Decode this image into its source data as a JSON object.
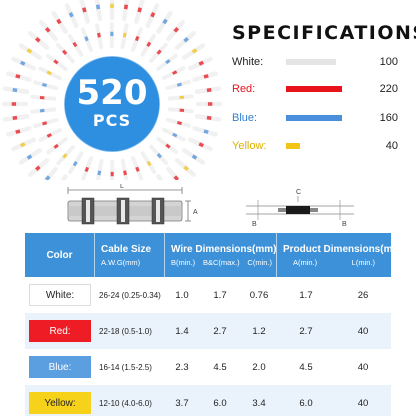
{
  "badge": {
    "number": "520",
    "unit": "PCS"
  },
  "specifications": {
    "title": "SPECIFICATIONS",
    "items": [
      {
        "label": "White:",
        "count": "100",
        "color": "#e4e4e4",
        "label_color": "#222222"
      },
      {
        "label": "Red:",
        "count": "220",
        "color": "#e8141c",
        "label_color": "#e8141c"
      },
      {
        "label": "Blue:",
        "count": "160",
        "color": "#4a8fdc",
        "label_color": "#2f7fd4"
      },
      {
        "label": "Yellow:",
        "count": "40",
        "color": "#f2c416",
        "label_color": "#e0b000"
      }
    ]
  },
  "diagram": {
    "label_l": "L",
    "label_a": "A",
    "label_b": "B",
    "label_c": "C"
  },
  "table": {
    "header": {
      "color": "Color",
      "cable_size": "Cable Size",
      "awg": "A.W.G(mm)",
      "wire_dimensions": "Wire Dimensions(mm)",
      "wire_b": "B(min.)",
      "wire_bc": "B&C(max.)",
      "wire_c": "C(min.)",
      "product_dimensions": "Product Dimensions(mm)",
      "prod_a": "A(min.)",
      "prod_l": "L(min.)"
    },
    "rows": [
      {
        "color": "White:",
        "tag_bg": "#ffffff",
        "tag_fg": "#222222",
        "size": "26-24  (0.25-0.34)",
        "b": "1.0",
        "bc": "1.7",
        "c": "0.76",
        "a": "1.7",
        "l": "26"
      },
      {
        "color": "Red:",
        "tag_bg": "#ee1c25",
        "tag_fg": "#ffffff",
        "size": "22-18  (0.5-1.0)",
        "b": "1.4",
        "bc": "2.7",
        "c": "1.2",
        "a": "2.7",
        "l": "40"
      },
      {
        "color": "Blue:",
        "tag_bg": "#5b9fe0",
        "tag_fg": "#ffffff",
        "size": "16-14  (1.5-2.5)",
        "b": "2.3",
        "bc": "4.5",
        "c": "2.0",
        "a": "4.5",
        "l": "40"
      },
      {
        "color": "Yellow:",
        "tag_bg": "#f7d21a",
        "tag_fg": "#222222",
        "size": "12-10  (4.0-6.0)",
        "b": "3.7",
        "bc": "6.0",
        "c": "3.4",
        "a": "6.0",
        "l": "40"
      }
    ]
  }
}
